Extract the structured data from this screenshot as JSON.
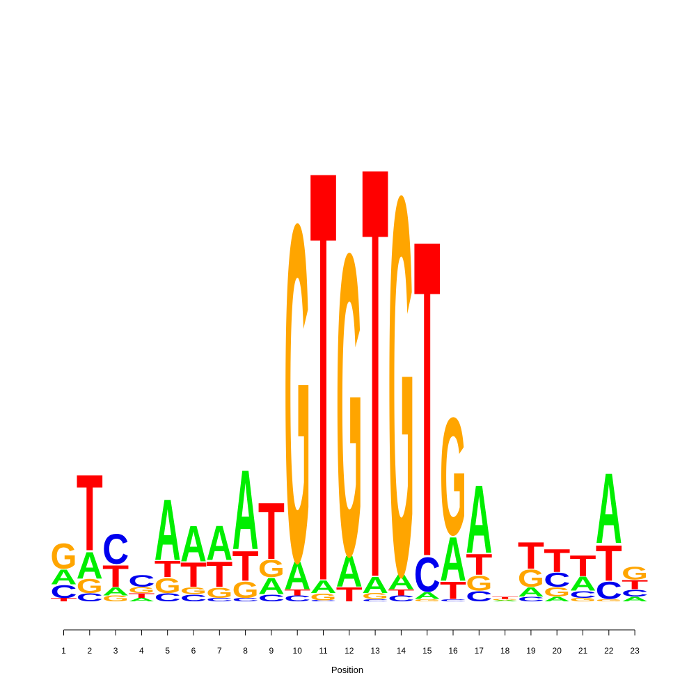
{
  "chart_data": {
    "type": "sequence_logo",
    "title": "",
    "xlabel": "Position",
    "ylabel": "",
    "x_ticks": [
      "1",
      "2",
      "3",
      "4",
      "5",
      "6",
      "7",
      "8",
      "9",
      "10",
      "11",
      "12",
      "13",
      "14",
      "15",
      "16",
      "17",
      "18",
      "19",
      "20",
      "21",
      "22",
      "23"
    ],
    "colors": {
      "A": "#00ee00",
      "C": "#0000ee",
      "G": "#ffa500",
      "T": "#ff0000"
    },
    "positions": [
      {
        "x": 1,
        "stack": [
          [
            "T",
            0.03
          ],
          [
            "C",
            0.11
          ],
          [
            "A",
            0.13
          ],
          [
            "G",
            0.22
          ]
        ]
      },
      {
        "x": 2,
        "stack": [
          [
            "C",
            0.07
          ],
          [
            "G",
            0.12
          ],
          [
            "A",
            0.23
          ],
          [
            "T",
            0.66
          ]
        ]
      },
      {
        "x": 3,
        "stack": [
          [
            "G",
            0.05
          ],
          [
            "A",
            0.07
          ],
          [
            "T",
            0.19
          ],
          [
            "C",
            0.26
          ]
        ]
      },
      {
        "x": 4,
        "stack": [
          [
            "A",
            0.03
          ],
          [
            "T",
            0.04
          ],
          [
            "G",
            0.05
          ],
          [
            "C",
            0.1
          ]
        ]
      },
      {
        "x": 5,
        "stack": [
          [
            "C",
            0.07
          ],
          [
            "G",
            0.13
          ],
          [
            "T",
            0.14
          ],
          [
            "A",
            0.53
          ]
        ]
      },
      {
        "x": 6,
        "stack": [
          [
            "C",
            0.06
          ],
          [
            "G",
            0.06
          ],
          [
            "T",
            0.21
          ],
          [
            "A",
            0.31
          ]
        ]
      },
      {
        "x": 7,
        "stack": [
          [
            "C",
            0.03
          ],
          [
            "G",
            0.09
          ],
          [
            "T",
            0.22
          ],
          [
            "A",
            0.3
          ]
        ]
      },
      {
        "x": 8,
        "stack": [
          [
            "C",
            0.03
          ],
          [
            "G",
            0.14
          ],
          [
            "T",
            0.26
          ],
          [
            "A",
            0.69
          ]
        ]
      },
      {
        "x": 9,
        "stack": [
          [
            "C",
            0.06
          ],
          [
            "A",
            0.14
          ],
          [
            "G",
            0.15
          ],
          [
            "T",
            0.49
          ]
        ]
      },
      {
        "x": 10,
        "stack": [
          [
            "C",
            0.05
          ],
          [
            "T",
            0.05
          ],
          [
            "A",
            0.24
          ],
          [
            "G",
            2.93
          ]
        ]
      },
      {
        "x": 11,
        "stack": [
          [
            "C",
            0.01
          ],
          [
            "G",
            0.06
          ],
          [
            "A",
            0.11
          ],
          [
            "T",
            3.57
          ]
        ]
      },
      {
        "x": 12,
        "stack": [
          [
            "T",
            0.12
          ],
          [
            "A",
            0.27
          ],
          [
            "G",
            2.62
          ]
        ]
      },
      {
        "x": 13,
        "stack": [
          [
            "C",
            0.02
          ],
          [
            "G",
            0.05
          ],
          [
            "A",
            0.14
          ],
          [
            "T",
            3.57
          ]
        ]
      },
      {
        "x": 14,
        "stack": [
          [
            "C",
            0.05
          ],
          [
            "T",
            0.05
          ],
          [
            "A",
            0.13
          ],
          [
            "G",
            3.29
          ]
        ]
      },
      {
        "x": 15,
        "stack": [
          [
            "G",
            0.02
          ],
          [
            "A",
            0.06
          ],
          [
            "C",
            0.3
          ],
          [
            "T",
            2.75
          ]
        ]
      },
      {
        "x": 16,
        "stack": [
          [
            "C",
            0.02
          ],
          [
            "T",
            0.15
          ],
          [
            "A",
            0.38
          ],
          [
            "G",
            1.02
          ]
        ]
      },
      {
        "x": 17,
        "stack": [
          [
            "C",
            0.09
          ],
          [
            "G",
            0.13
          ],
          [
            "T",
            0.18
          ],
          [
            "A",
            0.59
          ]
        ]
      },
      {
        "x": 18,
        "stack": [
          [
            "A",
            0.01
          ],
          [
            "G",
            0.01
          ],
          [
            "T",
            0.02
          ]
        ]
      },
      {
        "x": 19,
        "stack": [
          [
            "C",
            0.04
          ],
          [
            "A",
            0.08
          ],
          [
            "G",
            0.15
          ],
          [
            "T",
            0.23
          ]
        ]
      },
      {
        "x": 20,
        "stack": [
          [
            "A",
            0.04
          ],
          [
            "G",
            0.08
          ],
          [
            "C",
            0.12
          ],
          [
            "T",
            0.2
          ]
        ]
      },
      {
        "x": 21,
        "stack": [
          [
            "G",
            0.03
          ],
          [
            "C",
            0.06
          ],
          [
            "A",
            0.12
          ],
          [
            "T",
            0.18
          ]
        ]
      },
      {
        "x": 22,
        "stack": [
          [
            "G",
            0.02
          ],
          [
            "C",
            0.15
          ],
          [
            "T",
            0.31
          ],
          [
            "A",
            0.61
          ]
        ]
      },
      {
        "x": 23,
        "stack": [
          [
            "A",
            0.04
          ],
          [
            "C",
            0.06
          ],
          [
            "T",
            0.08
          ],
          [
            "G",
            0.11
          ]
        ]
      }
    ]
  }
}
